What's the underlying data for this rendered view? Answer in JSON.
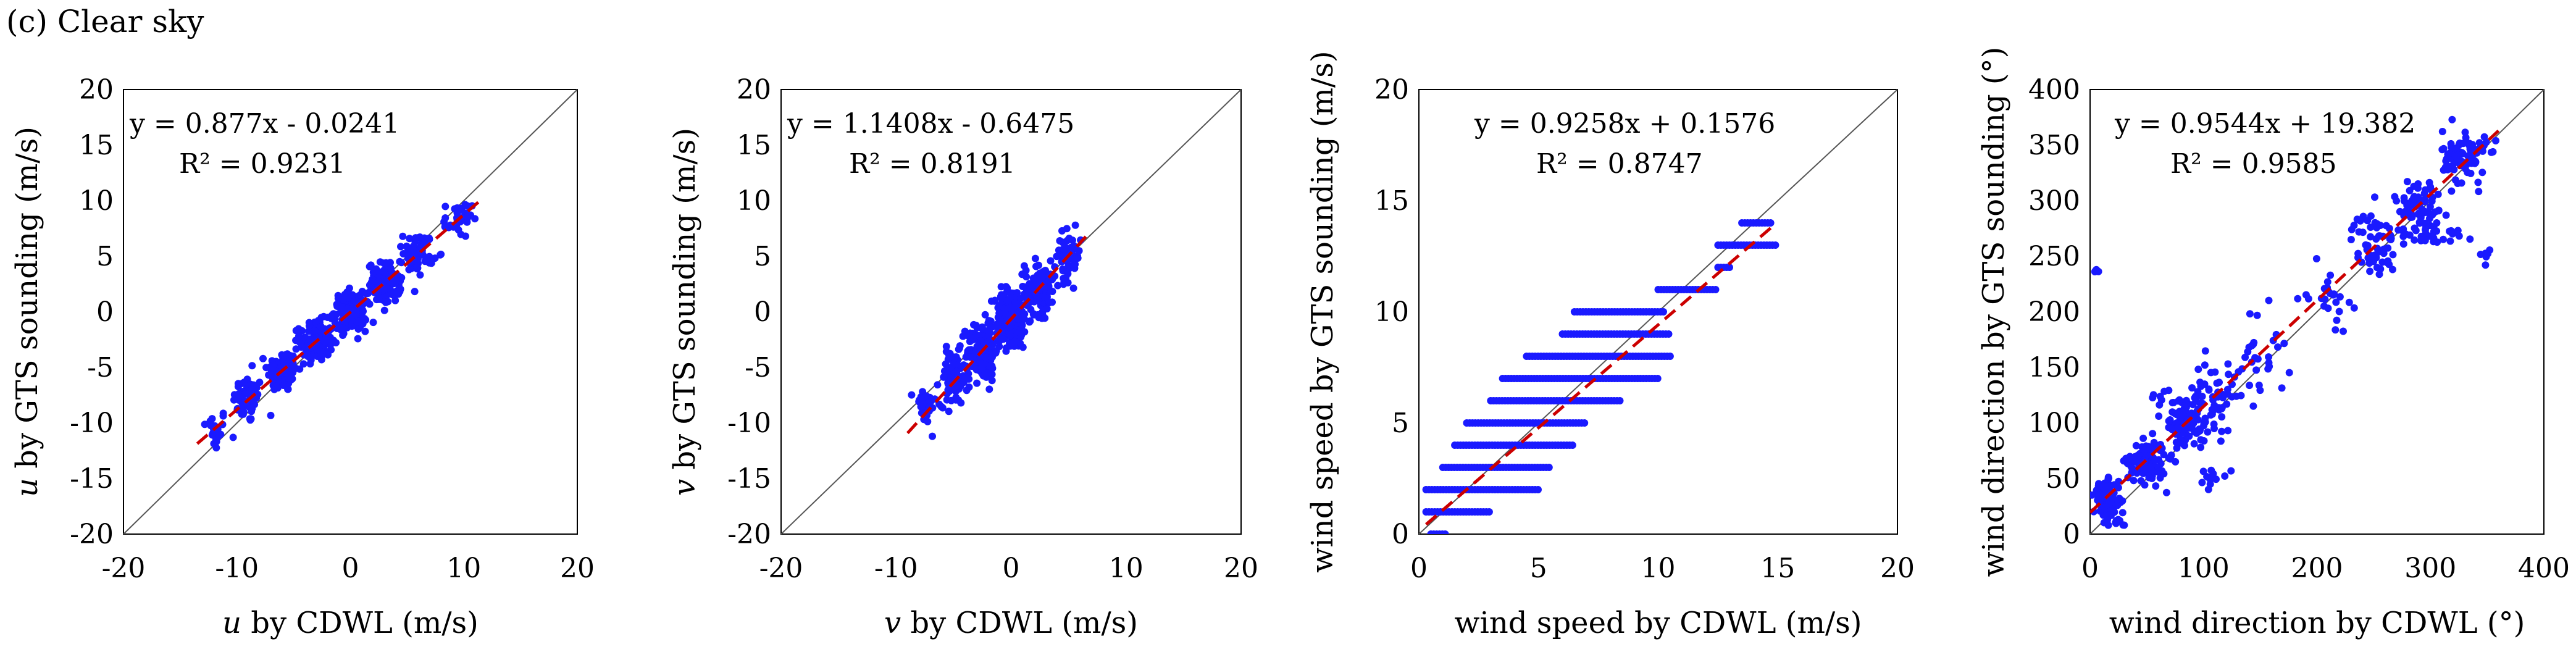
{
  "caption": "(c) Clear sky",
  "colors": {
    "points": "#1a1aff",
    "trend": "#cc0000",
    "identity": "#555555",
    "frame": "#000000"
  },
  "chart_data": [
    {
      "type": "scatter",
      "title": "",
      "xlabel_italic": "u",
      "xlabel_rest": " by CDWL (m/s)",
      "ylabel_italic": "u",
      "ylabel_rest": " by GTS sounding (m/s)",
      "xlim": [
        -20,
        20
      ],
      "ylim": [
        -20,
        20
      ],
      "xticks": [
        -20,
        -10,
        0,
        10,
        20
      ],
      "yticks": [
        -20,
        -15,
        -10,
        -5,
        0,
        5,
        10,
        15,
        20
      ],
      "equation": "y = 0.877x - 0.0241",
      "r2": "R² = 0.9231",
      "trend": {
        "slope": 0.877,
        "intercept": -0.0241,
        "x_range": [
          -13.5,
          11.5
        ]
      },
      "point_clusters": [
        {
          "x": -12,
          "y": -10.6,
          "sx": 1.0,
          "sy": 1.6,
          "n": 20
        },
        {
          "x": -9,
          "y": -7.9,
          "sx": 1.1,
          "sy": 1.8,
          "n": 50
        },
        {
          "x": -6,
          "y": -5.3,
          "sx": 1.1,
          "sy": 1.6,
          "n": 110
        },
        {
          "x": -3,
          "y": -2.6,
          "sx": 1.2,
          "sy": 1.5,
          "n": 150
        },
        {
          "x": 0,
          "y": 0,
          "sx": 1.2,
          "sy": 1.4,
          "n": 150
        },
        {
          "x": 3,
          "y": 2.6,
          "sx": 1.2,
          "sy": 1.5,
          "n": 110
        },
        {
          "x": 6,
          "y": 5.3,
          "sx": 1.1,
          "sy": 1.5,
          "n": 60
        },
        {
          "x": 9.5,
          "y": 8.3,
          "sx": 1.0,
          "sy": 1.3,
          "n": 35
        }
      ]
    },
    {
      "type": "scatter",
      "title": "",
      "xlabel_italic": "v",
      "xlabel_rest": " by CDWL (m/s)",
      "ylabel_italic": "v",
      "ylabel_rest": " by GTS sounding (m/s)",
      "xlim": [
        -20,
        20
      ],
      "ylim": [
        -20,
        20
      ],
      "xticks": [
        -20,
        -10,
        0,
        10,
        20
      ],
      "yticks": [
        -20,
        -15,
        -10,
        -5,
        0,
        5,
        10,
        15,
        20
      ],
      "equation": "y = 1.1408x - 0.6475",
      "r2": "R² = 0.8191",
      "trend": {
        "slope": 1.1408,
        "intercept": -0.6475,
        "x_range": [
          -9,
          6.5
        ]
      },
      "point_clusters": [
        {
          "x": -7.5,
          "y": -8.5,
          "sx": 0.8,
          "sy": 1.5,
          "n": 30
        },
        {
          "x": -5,
          "y": -6.0,
          "sx": 1.0,
          "sy": 2.0,
          "n": 90
        },
        {
          "x": -2.5,
          "y": -3.5,
          "sx": 1.1,
          "sy": 2.2,
          "n": 150
        },
        {
          "x": 0,
          "y": -0.6,
          "sx": 1.2,
          "sy": 2.3,
          "n": 180
        },
        {
          "x": 2.5,
          "y": 2.2,
          "sx": 1.1,
          "sy": 2.0,
          "n": 130
        },
        {
          "x": 5,
          "y": 5.0,
          "sx": 0.9,
          "sy": 1.8,
          "n": 60
        }
      ]
    },
    {
      "type": "scatter",
      "title": "",
      "xlabel_italic": "",
      "xlabel_rest": "wind speed by CDWL (m/s)",
      "ylabel_italic": "",
      "ylabel_rest": "wind speed by GTS sounding (m/s)",
      "xlim": [
        0,
        20
      ],
      "ylim": [
        0,
        20
      ],
      "xticks": [
        0,
        5,
        10,
        15,
        20
      ],
      "yticks": [
        0,
        5,
        10,
        15,
        20
      ],
      "equation": "y = 0.9258x + 0.1576",
      "r2": "R² = 0.8747",
      "trend": {
        "slope": 0.9258,
        "intercept": 0.1576,
        "x_range": [
          0.3,
          14.8
        ]
      },
      "bands": [
        {
          "y": 0,
          "x_min": 0.5,
          "x_max": 1.2
        },
        {
          "y": 1,
          "x_min": 0.3,
          "x_max": 3.0
        },
        {
          "y": 2,
          "x_min": 0.3,
          "x_max": 5.0
        },
        {
          "y": 3,
          "x_min": 1.0,
          "x_max": 5.5
        },
        {
          "y": 4,
          "x_min": 1.5,
          "x_max": 6.5
        },
        {
          "y": 5,
          "x_min": 2.0,
          "x_max": 7.0
        },
        {
          "y": 6,
          "x_min": 3.0,
          "x_max": 8.5
        },
        {
          "y": 7,
          "x_min": 3.5,
          "x_max": 10.0
        },
        {
          "y": 8,
          "x_min": 4.5,
          "x_max": 10.5
        },
        {
          "y": 9,
          "x_min": 6.0,
          "x_max": 10.5
        },
        {
          "y": 10,
          "x_min": 6.5,
          "x_max": 10.3
        },
        {
          "y": 11,
          "x_min": 10.0,
          "x_max": 12.5
        },
        {
          "y": 12,
          "x_min": 12.5,
          "x_max": 13.0
        },
        {
          "y": 13,
          "x_min": 12.5,
          "x_max": 15.0
        },
        {
          "y": 14,
          "x_min": 13.5,
          "x_max": 14.8
        }
      ]
    },
    {
      "type": "scatter",
      "title": "",
      "xlabel_italic": "",
      "xlabel_rest": "wind direction by CDWL (°)",
      "ylabel_italic": "",
      "ylabel_rest": "wind direction by GTS sounding (°)",
      "xlim": [
        0,
        400
      ],
      "ylim": [
        0,
        400
      ],
      "xticks": [
        0,
        100,
        200,
        300,
        400
      ],
      "yticks": [
        0,
        50,
        100,
        150,
        200,
        250,
        300,
        350,
        400
      ],
      "equation": "y = 0.9544x + 19.382",
      "r2": "R² = 0.9585",
      "trend": {
        "slope": 0.9544,
        "intercept": 19.382,
        "x_range": [
          0,
          360
        ]
      },
      "point_clusters": [
        {
          "x": 15,
          "y": 30,
          "sx": 10,
          "sy": 14,
          "n": 90
        },
        {
          "x": 50,
          "y": 65,
          "sx": 14,
          "sy": 16,
          "n": 110
        },
        {
          "x": 85,
          "y": 100,
          "sx": 14,
          "sy": 22,
          "n": 110
        },
        {
          "x": 110,
          "y": 125,
          "sx": 15,
          "sy": 28,
          "n": 45
        },
        {
          "x": 150,
          "y": 160,
          "sx": 20,
          "sy": 35,
          "n": 30
        },
        {
          "x": 210,
          "y": 215,
          "sx": 15,
          "sy": 22,
          "n": 25
        },
        {
          "x": 250,
          "y": 260,
          "sx": 16,
          "sy": 25,
          "n": 60
        },
        {
          "x": 290,
          "y": 295,
          "sx": 18,
          "sy": 22,
          "n": 70
        },
        {
          "x": 330,
          "y": 340,
          "sx": 16,
          "sy": 20,
          "n": 90
        },
        {
          "x": 300,
          "y": 270,
          "sx": 25,
          "sy": 10,
          "n": 30
        },
        {
          "x": 60,
          "y": 120,
          "sx": 10,
          "sy": 8,
          "n": 8
        },
        {
          "x": 110,
          "y": 55,
          "sx": 12,
          "sy": 10,
          "n": 12
        },
        {
          "x": 350,
          "y": 250,
          "sx": 5,
          "sy": 8,
          "n": 6
        },
        {
          "x": 5,
          "y": 237,
          "sx": 3,
          "sy": 1,
          "n": 4
        },
        {
          "x": 25,
          "y": 10,
          "sx": 8,
          "sy": 3,
          "n": 8
        }
      ]
    }
  ]
}
